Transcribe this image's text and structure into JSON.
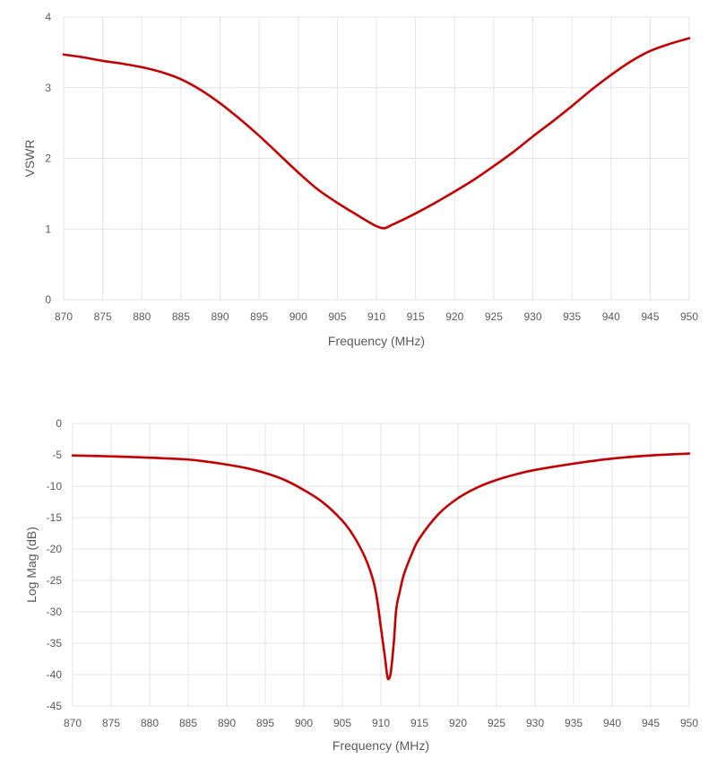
{
  "colors": {
    "series": "#c00000",
    "grid": "#e3e3e3",
    "text": "#595959"
  },
  "chart_data": [
    {
      "type": "line",
      "title": "",
      "xlabel": "Frequency (MHz)",
      "ylabel": "VSWR",
      "xlim": [
        870,
        950
      ],
      "ylim": [
        0,
        4
      ],
      "x_ticks": [
        870,
        875,
        880,
        885,
        890,
        895,
        900,
        905,
        910,
        915,
        920,
        925,
        930,
        935,
        940,
        945,
        950
      ],
      "y_ticks": [
        0,
        1,
        2,
        3,
        4
      ],
      "grid": true,
      "legend": "none",
      "series": [
        {
          "x": [
            870,
            872.5,
            875,
            877.5,
            880,
            882.5,
            885,
            887.5,
            890,
            892.5,
            895,
            897.5,
            900,
            902.5,
            905,
            907.5,
            909,
            910,
            911,
            912,
            913,
            915,
            917.5,
            920,
            922.5,
            925,
            927.5,
            930,
            932.5,
            935,
            937.5,
            940,
            942.5,
            945,
            947.5,
            950
          ],
          "y": [
            3.47,
            3.43,
            3.38,
            3.34,
            3.29,
            3.22,
            3.12,
            2.97,
            2.78,
            2.56,
            2.32,
            2.06,
            1.8,
            1.56,
            1.37,
            1.2,
            1.1,
            1.04,
            1.01,
            1.06,
            1.11,
            1.22,
            1.37,
            1.53,
            1.7,
            1.89,
            2.09,
            2.31,
            2.52,
            2.74,
            2.97,
            3.18,
            3.37,
            3.52,
            3.62,
            3.7
          ]
        }
      ]
    },
    {
      "type": "line",
      "title": "",
      "xlabel": "Frequency (MHz)",
      "ylabel": "Log Mag (dB)",
      "xlim": [
        870,
        950
      ],
      "ylim": [
        -45,
        0
      ],
      "x_ticks": [
        870,
        875,
        880,
        885,
        890,
        895,
        900,
        905,
        910,
        915,
        920,
        925,
        930,
        935,
        940,
        945,
        950
      ],
      "y_ticks": [
        0,
        -5,
        -10,
        -15,
        -20,
        -25,
        -30,
        -35,
        -40,
        -45
      ],
      "grid": true,
      "legend": "none",
      "series": [
        {
          "x": [
            870,
            875,
            880,
            885,
            887.5,
            890,
            892.5,
            895,
            897.5,
            900,
            902.5,
            905,
            906.5,
            908,
            909,
            909.5,
            910,
            910.5,
            910.8,
            911,
            911.3,
            911.7,
            912,
            912.5,
            913,
            914,
            915,
            917.5,
            920,
            922.5,
            925,
            927.5,
            930,
            935,
            940,
            945,
            950
          ],
          "y": [
            -5.1,
            -5.25,
            -5.45,
            -5.75,
            -6.1,
            -6.55,
            -7.1,
            -7.9,
            -9.0,
            -10.6,
            -12.6,
            -15.5,
            -18.0,
            -21.5,
            -25.0,
            -28.0,
            -32.5,
            -37.0,
            -40.0,
            -40.7,
            -39.5,
            -34.5,
            -29.5,
            -26.5,
            -24.0,
            -20.8,
            -18.3,
            -14.4,
            -11.9,
            -10.2,
            -9.0,
            -8.1,
            -7.4,
            -6.4,
            -5.6,
            -5.1,
            -4.8
          ]
        }
      ]
    }
  ]
}
